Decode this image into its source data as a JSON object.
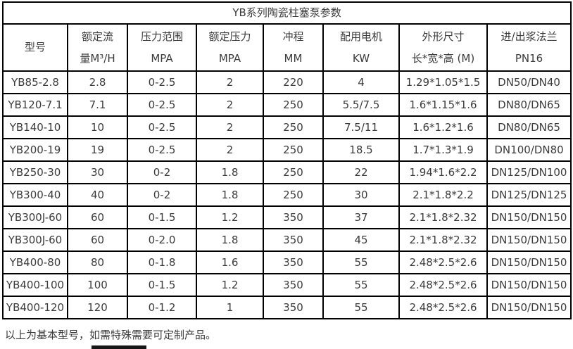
{
  "title": "YB系列陶瓷柱塞泵参数",
  "colors": {
    "border": "#000000",
    "text": "#3b3b3b",
    "background": "#ffffff"
  },
  "table": {
    "headers": [
      {
        "line1": "型号",
        "line2": ""
      },
      {
        "line1": "额定流",
        "line2": "量M³/H"
      },
      {
        "line1": "压力范围",
        "line2": "MPA"
      },
      {
        "line1": "额定压力",
        "line2": "MPA"
      },
      {
        "line1": "冲程",
        "line2": "MM"
      },
      {
        "line1": "配用电机",
        "line2": "KW"
      },
      {
        "line1": "外形尺寸",
        "line2": "长*宽*高 (M)"
      },
      {
        "line1": "进/出浆法兰",
        "line2": "PN16"
      }
    ],
    "rows": [
      [
        "YB85-2.8",
        "2.8",
        "0-2.5",
        "2",
        "220",
        "4",
        "1.29*1.05*1.5",
        "DN50/DN40"
      ],
      [
        "YB120-7.1",
        "7.1",
        "0-2.5",
        "2",
        "250",
        "5.5/7.5",
        "1.6*1.15*1.6",
        "DN80/DN65"
      ],
      [
        "YB140-10",
        "10",
        "0-2.5",
        "2",
        "250",
        "7.5/11",
        "1.6*1.2*1.6",
        "DN80/DN65"
      ],
      [
        "YB200-19",
        "19",
        "0-2.5",
        "2",
        "250",
        "18.5",
        "1.7*1.3*1.9",
        "DN100/DN80"
      ],
      [
        "YB250-30",
        "30",
        "0-2",
        "1.8",
        "250",
        "22",
        "1.94*1.6*2.2",
        "DN125/DN100"
      ],
      [
        "YB300-40",
        "40",
        "0-2",
        "1.8",
        "250",
        "30",
        "2.1*1.8*2.2",
        "DN125/DN125"
      ],
      [
        "YB300J-60",
        "60",
        "0-1.5",
        "1.2",
        "350",
        "37",
        "2.1*1.8*2.32",
        "DN150/DN150"
      ],
      [
        "YB300J-60",
        "60",
        "0-2.0",
        "1.8",
        "350",
        "45",
        "2.1*1.8*2.32",
        "DN150/DN150"
      ],
      [
        "YB400-80",
        "80",
        "0-1.8",
        "1.6",
        "350",
        "55",
        "2.48*2.5*2.6",
        "DN150/DN150"
      ],
      [
        "YB400-100",
        "100",
        "0-1.5",
        "1.2",
        "350",
        "55",
        "2.48*2.5*2.6",
        "DN150/DN150"
      ],
      [
        "YB400-120",
        "120",
        "0-1.2",
        "1",
        "350",
        "55",
        "2.48*2.5*2.6",
        "DN150/DN150"
      ]
    ]
  },
  "footer": {
    "note": "以上为基本型号，如需特殊需要可定制产品。"
  }
}
